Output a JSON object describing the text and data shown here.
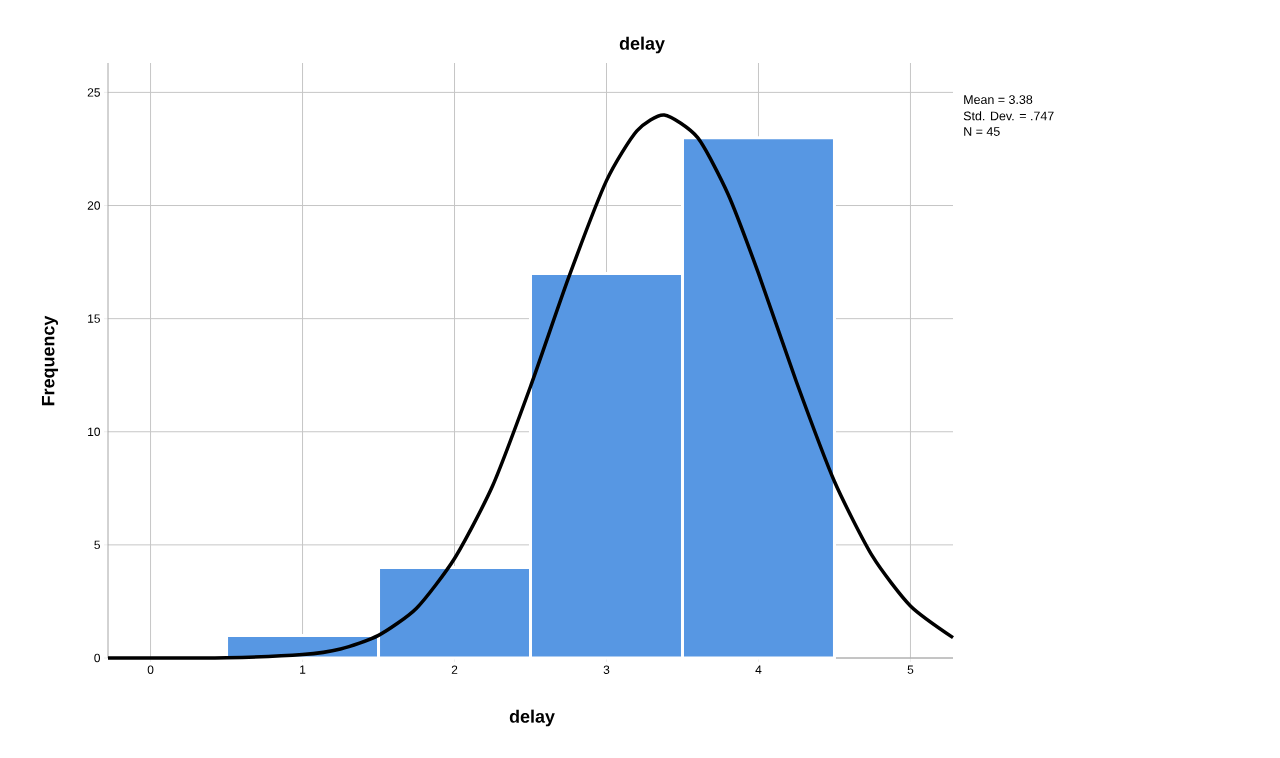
{
  "chart_data": {
    "type": "histogram",
    "title": "delay",
    "xlabel": "delay",
    "ylabel": "Frequency",
    "bins": [
      0.5,
      1.5,
      2.5,
      3.5,
      4.5
    ],
    "values": [
      1,
      4,
      17,
      23
    ],
    "color": "#5797e3",
    "series": [
      {
        "type": "line",
        "color": "#000000",
        "x": [
          -0.28,
          0,
          0.5,
          1,
          1.25,
          1.5,
          1.75,
          2,
          2.25,
          2.5,
          2.75,
          3,
          3.2,
          3.38,
          3.6,
          3.8,
          4,
          4.25,
          4.5,
          4.75,
          5,
          5.28
        ],
        "values": [
          0,
          0,
          0.01,
          0.15,
          0.4,
          1,
          2.2,
          4.4,
          7.6,
          12,
          16.8,
          21.1,
          23.3,
          24,
          23,
          20.5,
          17,
          12.2,
          7.8,
          4.5,
          2.3,
          0.9
        ]
      }
    ],
    "xlim": [
      -0.28,
      5.28
    ],
    "ylim": [
      0,
      26.3
    ],
    "xticks": [
      0,
      1,
      2,
      3,
      4,
      5
    ],
    "yticks": [
      0,
      5,
      10,
      15,
      20,
      25
    ],
    "grid": true,
    "annotations": [
      "Mean = 3.38",
      "Std. Dev. = .747",
      "N = 45"
    ]
  }
}
